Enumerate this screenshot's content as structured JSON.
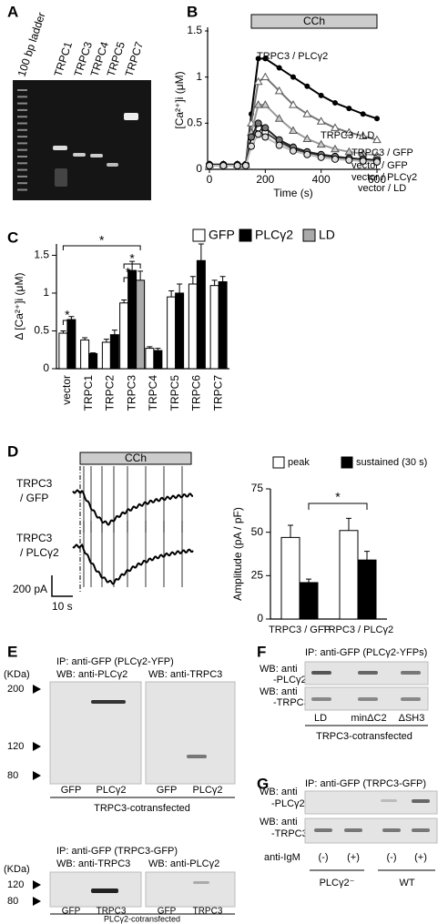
{
  "chart_data": [
    {
      "type": "line",
      "annotation": "CCh",
      "ylabel": "[Ca²⁺]i (μM)",
      "xlabel": "Time (s)",
      "x": [
        0,
        50,
        100,
        130,
        150,
        175,
        200,
        250,
        300,
        350,
        400,
        450,
        500,
        550,
        600
      ],
      "xlim": [
        0,
        600
      ],
      "xticks": [
        0,
        200,
        400,
        600
      ],
      "ylim": [
        0,
        1.5
      ],
      "yticks": [
        0,
        0.5,
        1,
        1.5
      ],
      "series": [
        {
          "name": "TRPC3 / PLCγ2",
          "color": "#000",
          "values": [
            0.05,
            0.05,
            0.05,
            0.05,
            0.6,
            1.2,
            1.2,
            1.1,
            1.0,
            0.9,
            0.8,
            0.72,
            0.66,
            0.6,
            0.55
          ]
        },
        {
          "name": "TRPC3 / LD",
          "color": "#777",
          "values": [
            0.05,
            0.05,
            0.05,
            0.05,
            0.5,
            0.95,
            1.0,
            0.85,
            0.7,
            0.6,
            0.52,
            0.45,
            0.4,
            0.36,
            0.32
          ]
        },
        {
          "name": "TRPC3 / GFP",
          "color": "#999",
          "values": [
            0.05,
            0.05,
            0.05,
            0.05,
            0.4,
            0.7,
            0.7,
            0.55,
            0.42,
            0.33,
            0.27,
            0.22,
            0.19,
            0.17,
            0.15
          ]
        },
        {
          "name": "vector / GFP",
          "color": "#444",
          "values": [
            0.05,
            0.05,
            0.05,
            0.05,
            0.3,
            0.45,
            0.4,
            0.3,
            0.22,
            0.18,
            0.15,
            0.13,
            0.12,
            0.11,
            0.1
          ]
        },
        {
          "name": "vector / PLCγ2",
          "color": "#222",
          "values": [
            0.05,
            0.05,
            0.05,
            0.05,
            0.35,
            0.5,
            0.45,
            0.32,
            0.24,
            0.19,
            0.16,
            0.14,
            0.12,
            0.11,
            0.1
          ]
        },
        {
          "name": "vector / LD",
          "color": "#bbb",
          "values": [
            0.04,
            0.04,
            0.04,
            0.04,
            0.25,
            0.38,
            0.35,
            0.26,
            0.2,
            0.16,
            0.13,
            0.11,
            0.1,
            0.09,
            0.08
          ]
        }
      ]
    },
    {
      "type": "bar",
      "ylabel": "Δ [Ca²⁺]i (μM)",
      "categories": [
        "vector",
        "TRPC1",
        "TRPC2",
        "TRPC3",
        "TRPC4",
        "TRPC5",
        "TRPC6",
        "TRPC7"
      ],
      "ylim": [
        0,
        1.65
      ],
      "yticks": [
        0,
        0.5,
        1,
        1.5
      ],
      "annotations": [
        "*",
        "*",
        "*",
        "*"
      ],
      "series": [
        {
          "name": "GFP",
          "color": "#fff",
          "values": [
            0.47,
            0.38,
            0.35,
            0.87,
            0.27,
            0.95,
            1.12,
            1.1
          ],
          "errors": [
            0.03,
            0.03,
            0.04,
            0.04,
            0.02,
            0.08,
            0.1,
            0.07
          ]
        },
        {
          "name": "PLCγ2",
          "color": "#000",
          "values": [
            0.65,
            0.2,
            0.45,
            1.3,
            0.24,
            1.0,
            1.43,
            1.15
          ],
          "errors": [
            0.04,
            0.01,
            0.06,
            0.12,
            0.03,
            0.12,
            0.22,
            0.07
          ]
        },
        {
          "name": "LD",
          "color": "#aaa",
          "values": [
            null,
            null,
            null,
            1.17,
            null,
            null,
            null,
            null
          ],
          "errors": [
            null,
            null,
            null,
            0.12,
            null,
            null,
            null,
            null
          ]
        }
      ]
    },
    {
      "type": "bar",
      "ylabel": "Amplitude (pA / pF)",
      "categories": [
        "TRPC3 / GFP",
        "TRPC3 / PLCγ2"
      ],
      "ylim": [
        0,
        75
      ],
      "yticks": [
        0,
        25,
        50,
        75
      ],
      "annotations": [
        "*"
      ],
      "series": [
        {
          "name": "peak",
          "color": "#fff",
          "values": [
            47,
            51
          ],
          "errors": [
            7,
            7
          ]
        },
        {
          "name": "sustained (30 s)",
          "color": "#000",
          "values": [
            21,
            34
          ],
          "errors": [
            2,
            5
          ]
        }
      ]
    }
  ],
  "labels": [
    "A",
    "B",
    "C",
    "D",
    "E",
    "F",
    "G"
  ],
  "gel_a": {
    "lanes": [
      "100 bp ladder",
      "TRPC1",
      "TRPC3",
      "TRPC4",
      "TRPC5",
      "TRPC7"
    ]
  },
  "traces": {
    "cch": "CCh",
    "rows": [
      [
        "TRPC3",
        "/ GFP"
      ],
      [
        "TRPC3",
        "/ PLCγ2"
      ]
    ],
    "scale_y": "200 pA",
    "scale_x": "10 s"
  },
  "panel_e": {
    "unit": "(KDa)",
    "top": {
      "ip": "IP: anti-GFP (PLCγ2-YFP)",
      "wb": [
        "WB: anti-PLCγ2",
        "WB: anti-TRPC3"
      ],
      "markers": [
        200,
        120,
        80
      ],
      "lanes": [
        "GFP",
        "PLCγ2",
        "GFP",
        "PLCγ2"
      ],
      "footer": "TRPC3-cotransfected"
    },
    "bottom": {
      "ip": "IP: anti-GFP (TRPC3-GFP)",
      "wb": [
        "WB: anti-TRPC3",
        "WB: anti-PLCγ2"
      ],
      "markers": [
        120,
        80
      ],
      "lanes": [
        "GFP",
        "TRPC3",
        "GFP",
        "TRPC3"
      ],
      "footer": "PLCγ2-cotransfected"
    }
  },
  "panel_f": {
    "ip": "IP: anti-GFP (PLCγ2-YFPs)",
    "wb": [
      "WB: anti",
      "-PLCγ2",
      "WB: anti",
      "-TRPC3"
    ],
    "lanes": [
      "LD",
      "minΔC2",
      "ΔSH3"
    ],
    "footer": "TRPC3-cotransfected"
  },
  "panel_g": {
    "ip": "IP: anti-GFP (TRPC3-GFP)",
    "wb": [
      "WB: anti",
      "-PLCγ2",
      "WB: anti",
      "-TRPC3"
    ],
    "row": "anti-IgM",
    "lanes": [
      "(-)",
      "(+)",
      "(-)",
      "(+)"
    ],
    "groups": [
      "PLCγ2⁻",
      "WT"
    ]
  }
}
